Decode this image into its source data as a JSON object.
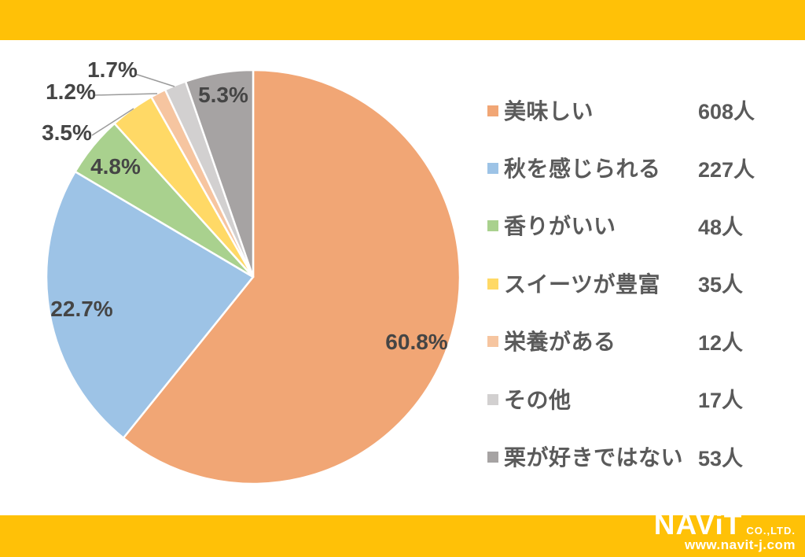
{
  "theme": {
    "band_color": "#FFC107",
    "background": "#FFFFFF",
    "legend_text_color": "#5A5A5A",
    "percent_label_color": "#454545",
    "leader_line_color": "#9B9B9B"
  },
  "chart_data": {
    "type": "pie",
    "title": "",
    "categories": [
      "美味しい",
      "秋を感じられる",
      "香りがいい",
      "スイーツが豊富",
      "栄養がある",
      "その他",
      "栗が好きではない"
    ],
    "values": [
      608,
      227,
      48,
      35,
      12,
      17,
      53
    ],
    "unit": "人",
    "percent_labels": [
      "60.8%",
      "22.7%",
      "4.8%",
      "3.5%",
      "1.2%",
      "1.7%",
      "5.3%"
    ],
    "colors": [
      "#F1A675",
      "#9DC3E6",
      "#A9D18E",
      "#FFD966",
      "#F6C5A0",
      "#D2D0D0",
      "#A6A3A3"
    ],
    "start_angle_deg": 0,
    "direction": "clockwise",
    "legend_position": "right"
  },
  "legend": {
    "items": [
      {
        "label": "美味しい",
        "value_label": "608人",
        "color": "#F1A675"
      },
      {
        "label": "秋を感じられる",
        "value_label": "227人",
        "color": "#9DC3E6"
      },
      {
        "label": "香りがいい",
        "value_label": "48人",
        "color": "#A9D18E"
      },
      {
        "label": "スイーツが豊富",
        "value_label": "35人",
        "color": "#FFD966"
      },
      {
        "label": "栄養がある",
        "value_label": "12人",
        "color": "#F6C5A0"
      },
      {
        "label": "その他",
        "value_label": "17人",
        "color": "#D2D0D0"
      },
      {
        "label": "栗が好きではない",
        "value_label": "53人",
        "color": "#A6A3A3"
      }
    ]
  },
  "footer": {
    "brand": "NAViT",
    "company_suffix": "CO.,LTD.",
    "website": "www.navit-j.com"
  }
}
